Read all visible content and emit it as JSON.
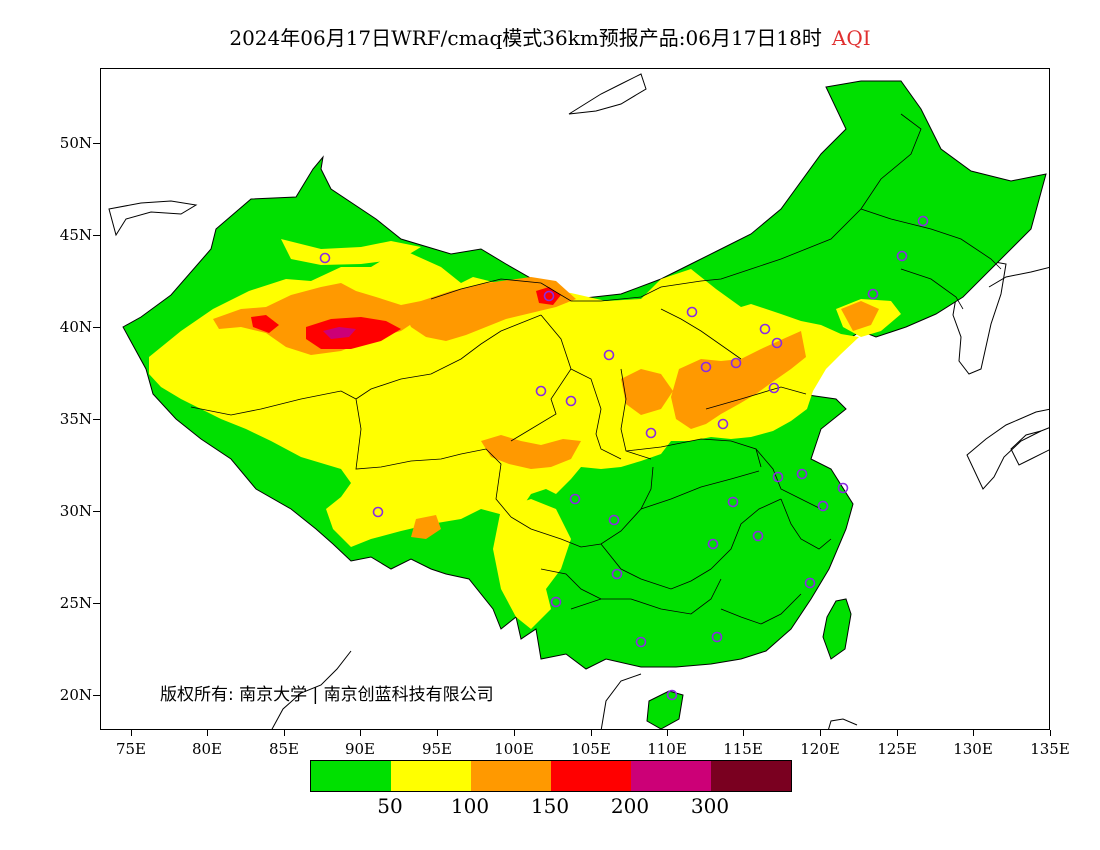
{
  "title": {
    "text": "2024年06月17日WRF/cmaq模式36km预报产品:06月17日18时",
    "accent": "AQI",
    "accent_color": "#e03030"
  },
  "map": {
    "lat_labels": [
      "50N",
      "45N",
      "40N",
      "35N",
      "30N",
      "25N",
      "20N"
    ],
    "lon_labels": [
      "75E",
      "80E",
      "85E",
      "90E",
      "95E",
      "100E",
      "105E",
      "110E",
      "115E",
      "120E",
      "125E",
      "130E",
      "135E"
    ],
    "copyright": "版权所有: 南京大学 | 南京创蓝科技有限公司",
    "colors": {
      "good": "#00e000",
      "moderate": "#ffff00",
      "sensitive": "#ff9900",
      "unhealthy": "#ff0000",
      "very_unhealthy": "#cc0077",
      "hazardous": "#7a0020",
      "station_marker": "#8a2be2"
    }
  },
  "legend": {
    "colors": [
      "#00e000",
      "#ffff00",
      "#ff9900",
      "#ff0000",
      "#cc0077",
      "#7a0020"
    ],
    "labels": [
      "50",
      "100",
      "150",
      "200",
      "300"
    ]
  }
}
